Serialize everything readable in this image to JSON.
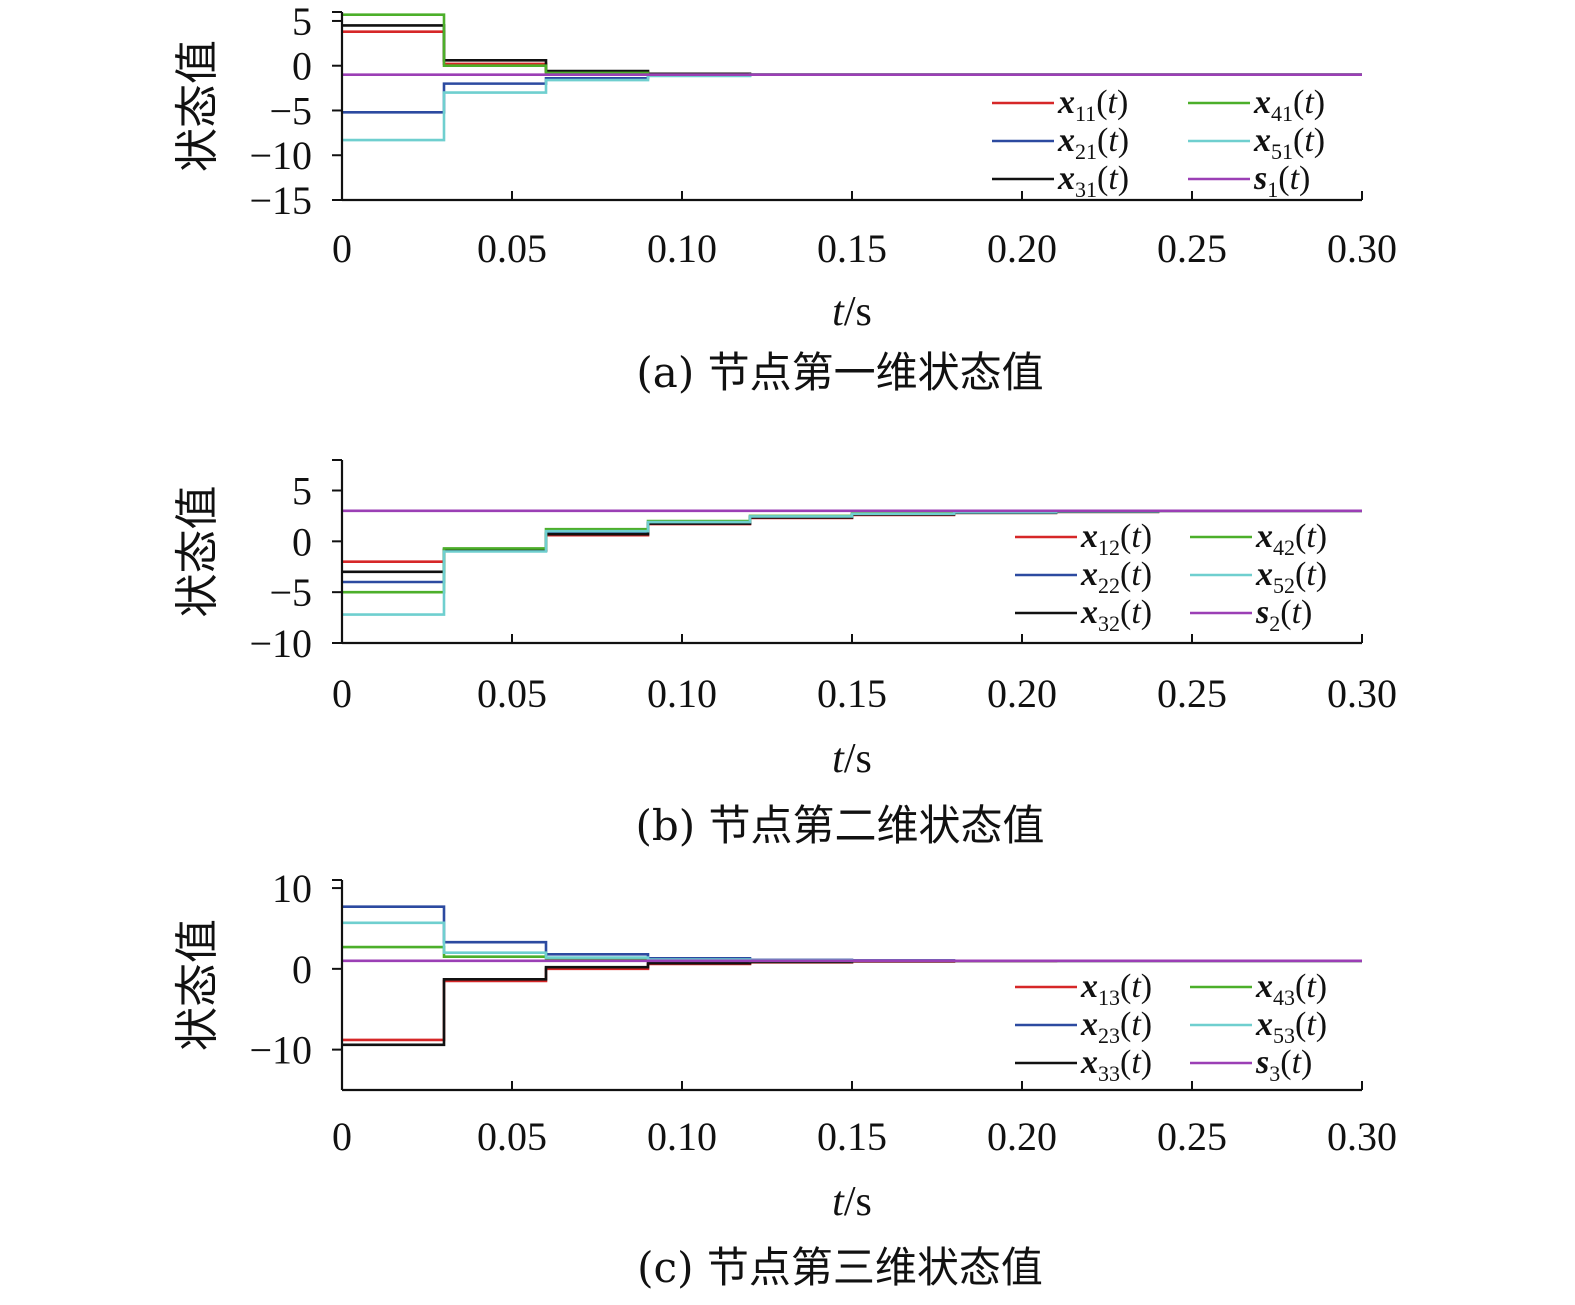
{
  "figure": {
    "x_axis_label_var": "t",
    "x_axis_label_unit": "/s",
    "y_axis_label": "状态值",
    "x_ticks": [
      "0",
      "0.05",
      "0.10",
      "0.15",
      "0.20",
      "0.25",
      "0.30"
    ]
  },
  "chart_data": [
    {
      "type": "line",
      "step": true,
      "caption": "(a) 节点第一维状态值",
      "xlabel": "t/s",
      "ylabel": "状态值",
      "xlim": [
        0,
        0.3
      ],
      "ylim": [
        -15,
        6
      ],
      "y_ticks": [
        5,
        0,
        -5,
        -10,
        -15
      ],
      "y_tick_labels": [
        "5",
        "0",
        "−5",
        "−10",
        "−15"
      ],
      "x": [
        0,
        0.03,
        0.06,
        0.09,
        0.12,
        0.15,
        0.18,
        0.21,
        0.24,
        0.27,
        0.3
      ],
      "series": [
        {
          "name": "x11(t)",
          "base": "x",
          "sub": "11",
          "color": "#d62728",
          "values": [
            3.8,
            0.2,
            -0.7,
            -0.95,
            -1.0,
            -1.0,
            -1.0,
            -1.0,
            -1.0,
            -1.0,
            -1.0
          ]
        },
        {
          "name": "x21(t)",
          "base": "x",
          "sub": "21",
          "color": "#2c4aa0",
          "values": [
            -5.2,
            -2.0,
            -1.4,
            -1.1,
            -1.0,
            -1.0,
            -1.0,
            -1.0,
            -1.0,
            -1.0,
            -1.0
          ]
        },
        {
          "name": "x31(t)",
          "base": "x",
          "sub": "31",
          "color": "#111111",
          "values": [
            4.5,
            0.6,
            -0.6,
            -0.9,
            -1.0,
            -1.0,
            -1.0,
            -1.0,
            -1.0,
            -1.0,
            -1.0
          ]
        },
        {
          "name": "x41(t)",
          "base": "x",
          "sub": "41",
          "color": "#4caf2a",
          "values": [
            5.7,
            0.0,
            -0.8,
            -1.0,
            -1.0,
            -1.0,
            -1.0,
            -1.0,
            -1.0,
            -1.0,
            -1.0
          ]
        },
        {
          "name": "x51(t)",
          "base": "x",
          "sub": "51",
          "color": "#6fcfcf",
          "values": [
            -8.3,
            -3.0,
            -1.6,
            -1.15,
            -1.0,
            -1.0,
            -1.0,
            -1.0,
            -1.0,
            -1.0,
            -1.0
          ]
        },
        {
          "name": "s1(t)",
          "base": "s",
          "sub": "1",
          "color": "#9b3fb5",
          "values": [
            -1.0,
            -1.0,
            -1.0,
            -1.0,
            -1.0,
            -1.0,
            -1.0,
            -1.0,
            -1.0,
            -1.0,
            -1.0
          ]
        }
      ]
    },
    {
      "type": "line",
      "step": true,
      "caption": "(b) 节点第二维状态值",
      "xlabel": "t/s",
      "ylabel": "状态值",
      "xlim": [
        0,
        0.3
      ],
      "ylim": [
        -10,
        8
      ],
      "y_ticks": [
        5,
        0,
        -5,
        -10
      ],
      "y_tick_labels": [
        "5",
        "0",
        "−5",
        "−10"
      ],
      "x": [
        0,
        0.03,
        0.06,
        0.09,
        0.12,
        0.15,
        0.18,
        0.21,
        0.24,
        0.27,
        0.3
      ],
      "series": [
        {
          "name": "x12(t)",
          "base": "x",
          "sub": "12",
          "color": "#d62728",
          "values": [
            -2.0,
            -0.9,
            0.6,
            1.7,
            2.3,
            2.6,
            2.8,
            2.9,
            3.0,
            3.0,
            3.0
          ]
        },
        {
          "name": "x22(t)",
          "base": "x",
          "sub": "22",
          "color": "#2c4aa0",
          "values": [
            -4.0,
            -0.8,
            0.8,
            1.8,
            2.4,
            2.7,
            2.85,
            2.95,
            3.0,
            3.0,
            3.0
          ]
        },
        {
          "name": "x32(t)",
          "base": "x",
          "sub": "32",
          "color": "#111111",
          "values": [
            -3.0,
            -0.9,
            0.7,
            1.75,
            2.35,
            2.65,
            2.8,
            2.9,
            3.0,
            3.0,
            3.0
          ]
        },
        {
          "name": "x42(t)",
          "base": "x",
          "sub": "42",
          "color": "#4caf2a",
          "values": [
            -5.0,
            -0.7,
            1.2,
            2.0,
            2.5,
            2.75,
            2.9,
            2.95,
            3.0,
            3.0,
            3.0
          ]
        },
        {
          "name": "x52(t)",
          "base": "x",
          "sub": "52",
          "color": "#6fcfcf",
          "values": [
            -7.2,
            -1.0,
            1.0,
            1.9,
            2.45,
            2.7,
            2.85,
            2.95,
            3.0,
            3.0,
            3.0
          ]
        },
        {
          "name": "s2(t)",
          "base": "s",
          "sub": "2",
          "color": "#9b3fb5",
          "values": [
            3.0,
            3.0,
            3.0,
            3.0,
            3.0,
            3.0,
            3.0,
            3.0,
            3.0,
            3.0,
            3.0
          ]
        }
      ]
    },
    {
      "type": "line",
      "step": true,
      "caption": "(c) 节点第三维状态值",
      "xlabel": "t/s",
      "ylabel": "状态值",
      "xlim": [
        0,
        0.3
      ],
      "ylim": [
        -15,
        11
      ],
      "y_ticks": [
        10,
        0,
        -10
      ],
      "y_tick_labels": [
        "10",
        "0",
        "−10"
      ],
      "x": [
        0,
        0.03,
        0.06,
        0.09,
        0.12,
        0.15,
        0.18,
        0.21,
        0.24,
        0.27,
        0.3
      ],
      "series": [
        {
          "name": "x13(t)",
          "base": "x",
          "sub": "13",
          "color": "#d62728",
          "values": [
            -8.8,
            -1.5,
            0.0,
            0.6,
            0.8,
            0.9,
            0.95,
            1.0,
            1.0,
            1.0,
            1.0
          ]
        },
        {
          "name": "x23(t)",
          "base": "x",
          "sub": "23",
          "color": "#2c4aa0",
          "values": [
            7.7,
            3.3,
            1.8,
            1.3,
            1.1,
            1.05,
            1.0,
            1.0,
            1.0,
            1.0,
            1.0
          ]
        },
        {
          "name": "x33(t)",
          "base": "x",
          "sub": "33",
          "color": "#111111",
          "values": [
            -9.4,
            -1.3,
            0.2,
            0.7,
            0.85,
            0.95,
            1.0,
            1.0,
            1.0,
            1.0,
            1.0
          ]
        },
        {
          "name": "x43(t)",
          "base": "x",
          "sub": "43",
          "color": "#4caf2a",
          "values": [
            2.7,
            1.5,
            1.2,
            1.05,
            1.0,
            1.0,
            1.0,
            1.0,
            1.0,
            1.0,
            1.0
          ]
        },
        {
          "name": "x53(t)",
          "base": "x",
          "sub": "53",
          "color": "#6fcfcf",
          "values": [
            5.7,
            2.0,
            1.4,
            1.15,
            1.05,
            1.0,
            1.0,
            1.0,
            1.0,
            1.0,
            1.0
          ]
        },
        {
          "name": "s3(t)",
          "base": "s",
          "sub": "3",
          "color": "#9b3fb5",
          "values": [
            1.0,
            1.0,
            1.0,
            1.0,
            1.0,
            1.0,
            1.0,
            1.0,
            1.0,
            1.0,
            1.0
          ]
        }
      ]
    }
  ]
}
